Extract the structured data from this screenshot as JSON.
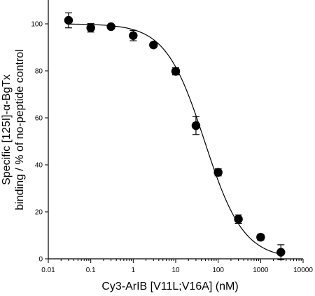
{
  "chart_data": {
    "type": "scatter",
    "title": "",
    "xlabel": "Cy3-ArIB [V11L;V16A] (nM)",
    "ylabel_lines": [
      "Specific [125I]-α-BgTx",
      "binding / % of no-peptide control"
    ],
    "xscale": "log",
    "xlim": [
      0.01,
      10000
    ],
    "ylim": [
      0,
      110
    ],
    "x_tick_values": [
      0.01,
      0.1,
      1,
      10,
      100,
      1000,
      10000
    ],
    "x_tick_labels": [
      "0.01",
      "0.1",
      "1",
      "10",
      "100",
      "1000",
      "10000"
    ],
    "y_tick_values": [
      0,
      20,
      40,
      60,
      80,
      100
    ],
    "y_tick_labels": [
      "0",
      "20",
      "40",
      "60",
      "80",
      "100"
    ],
    "grid": false,
    "series": [
      {
        "x": [
          0.03,
          0.1,
          0.3,
          1,
          3,
          10,
          30,
          100,
          300,
          1000,
          3000
        ],
        "y": [
          101.5,
          98.3,
          98.8,
          95,
          91,
          79.8,
          56.7,
          36.8,
          16.9,
          9.2,
          2.8
        ],
        "err": [
          3.2,
          1.8,
          0.8,
          2.2,
          0.8,
          1.5,
          3.8,
          1.5,
          1.8,
          1.2,
          3.2
        ]
      }
    ],
    "fit_curve": {
      "top": 100,
      "bottom": 0,
      "ic50": 48,
      "hill": 0.95
    }
  }
}
